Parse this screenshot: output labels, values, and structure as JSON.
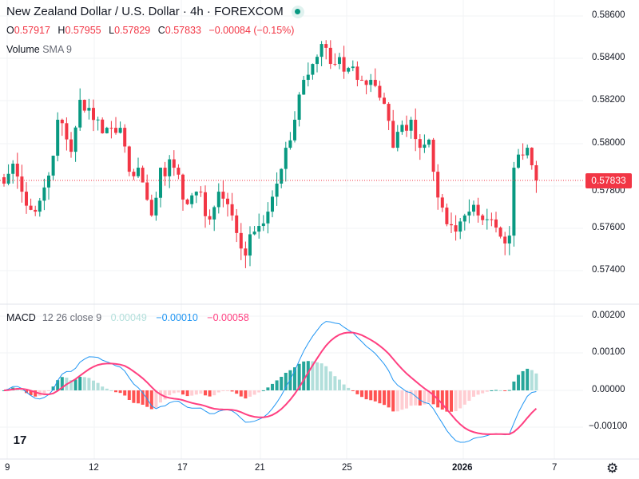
{
  "header": {
    "title": "New Zealand Dollar / U.S. Dollar · 4h · FOREXCOM",
    "status": "market-open-dot"
  },
  "ohlc": {
    "o_label": "O",
    "o": "0.57917",
    "h_label": "H",
    "h": "0.57955",
    "l_label": "L",
    "l": "0.57829",
    "c_label": "C",
    "c": "0.57833",
    "change": "−0.00084 (−0.15%)"
  },
  "volume": {
    "label": "Volume",
    "params": "SMA 9"
  },
  "macd": {
    "label": "MACD",
    "params": "12 26 close 9",
    "hist": "0.00049",
    "macd": "−0.00010",
    "signal": "−0.00058"
  },
  "price_axis": [
    "0.58600",
    "0.58400",
    "0.58200",
    "0.58000",
    "0.57800",
    "0.57600",
    "0.57400"
  ],
  "last_price": "0.57833",
  "macd_axis": [
    "0.00200",
    "0.00100",
    "0.00000",
    "−0.00100"
  ],
  "time_axis": [
    {
      "label": "9",
      "idx": 1
    },
    {
      "label": "12",
      "idx": 20
    },
    {
      "label": "17",
      "idx": 40
    },
    {
      "label": "21",
      "idx": 57
    },
    {
      "label": "25",
      "idx": 77
    },
    {
      "label": "2026",
      "idx": 103
    },
    {
      "label": "7",
      "idx": 123
    }
  ],
  "colors": {
    "up": "#089981",
    "down": "#f23645",
    "macd": "#2196f3",
    "signal": "#ff4081",
    "hist_up_strong": "#26a69a",
    "hist_up_weak": "#b2dfdb",
    "hist_dn_strong": "#ff5252",
    "hist_dn_weak": "#ffcdd2"
  },
  "chart_data": {
    "type": "candlestick",
    "interval": "4h",
    "ylim": [
      0.5734,
      0.5866
    ],
    "candle_count": 120,
    "close_anchors": [
      [
        0,
        0.5781
      ],
      [
        2,
        0.57904
      ],
      [
        4,
        0.57772
      ],
      [
        7,
        0.57678
      ],
      [
        10,
        0.57848
      ],
      [
        12,
        0.58111
      ],
      [
        15,
        0.5796
      ],
      [
        17,
        0.58205
      ],
      [
        20,
        0.5811
      ],
      [
        23,
        0.58073
      ],
      [
        26,
        0.58073
      ],
      [
        28,
        0.57866
      ],
      [
        30,
        0.57885
      ],
      [
        33,
        0.5766
      ],
      [
        35,
        0.57885
      ],
      [
        38,
        0.57885
      ],
      [
        40,
        0.57735
      ],
      [
        43,
        0.57772
      ],
      [
        46,
        0.57641
      ],
      [
        48,
        0.57772
      ],
      [
        51,
        0.5766
      ],
      [
        54,
        0.57471
      ],
      [
        56,
        0.57584
      ],
      [
        59,
        0.57678
      ],
      [
        61,
        0.5781
      ],
      [
        63,
        0.57979
      ],
      [
        65,
        0.58111
      ],
      [
        67,
        0.58299
      ],
      [
        69,
        0.58374
      ],
      [
        71,
        0.58468
      ],
      [
        72,
        0.5845
      ],
      [
        74,
        0.58374
      ],
      [
        77,
        0.58355
      ],
      [
        79,
        0.58299
      ],
      [
        82,
        0.58299
      ],
      [
        85,
        0.58186
      ],
      [
        87,
        0.57979
      ],
      [
        88,
        0.58054
      ],
      [
        91,
        0.58111
      ],
      [
        93,
        0.57979
      ],
      [
        95,
        0.58017
      ],
      [
        96,
        0.57866
      ],
      [
        98,
        0.57697
      ],
      [
        101,
        0.57584
      ],
      [
        104,
        0.57678
      ],
      [
        106,
        0.5766
      ],
      [
        109,
        0.57641
      ],
      [
        112,
        0.57528
      ],
      [
        113,
        0.57565
      ],
      [
        114,
        0.57885
      ],
      [
        117,
        0.57979
      ],
      [
        119,
        0.57825
      ]
    ]
  }
}
